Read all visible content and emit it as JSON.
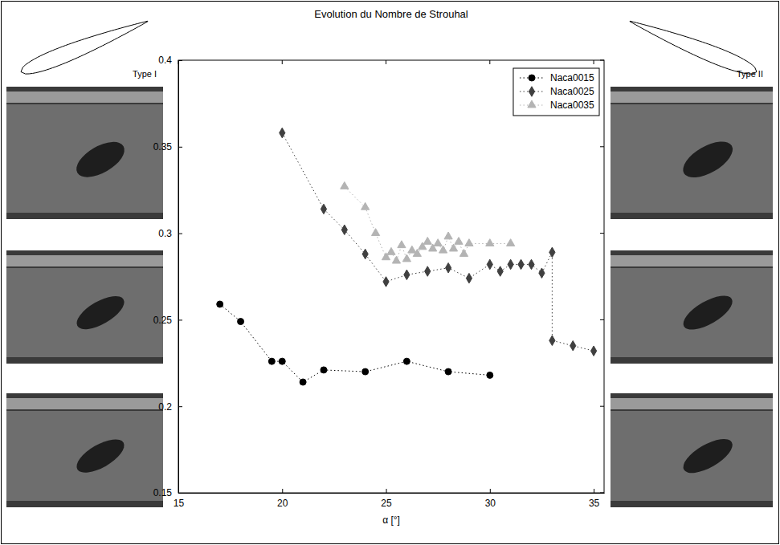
{
  "chart_data": {
    "type": "line",
    "title": "Evolution du Nombre de Strouhal",
    "x_label": "α [°]",
    "xlim": [
      15,
      35.5
    ],
    "xticks": [
      15,
      20,
      25,
      30,
      35
    ],
    "ylim": [
      0.15,
      0.4
    ],
    "yticks": [
      0.15,
      0.2,
      0.25,
      0.3,
      0.35,
      0.4
    ],
    "grid": false,
    "legend": "upper right",
    "annotations": [
      {
        "text": "Type I"
      },
      {
        "text": "Type II"
      }
    ],
    "series": [
      {
        "name": "Naca0015",
        "color": "#000000",
        "marker": "circle",
        "line_style": "dotted",
        "x": [
          17,
          18,
          19.5,
          20,
          21,
          22,
          24,
          26,
          28,
          30
        ],
        "values": [
          0.259,
          0.249,
          0.226,
          0.226,
          0.214,
          0.221,
          0.22,
          0.226,
          0.22,
          0.218
        ]
      },
      {
        "name": "Naca0025",
        "color": "#404040",
        "marker": "diamond",
        "line_style": "dotted",
        "x": [
          20,
          22,
          23,
          24,
          25,
          26,
          27,
          28,
          29,
          30,
          30.5,
          31,
          31.5,
          32,
          32.5,
          33,
          33,
          34,
          35
        ],
        "values": [
          0.358,
          0.314,
          0.302,
          0.288,
          0.272,
          0.276,
          0.278,
          0.28,
          0.274,
          0.282,
          0.278,
          0.282,
          0.282,
          0.282,
          0.277,
          0.289,
          0.238,
          0.235,
          0.232
        ]
      },
      {
        "name": "Naca0035",
        "color": "#b4b4b4",
        "marker": "triangle",
        "line_style": "dotted",
        "x": [
          23,
          24,
          24.5,
          25,
          25.25,
          25.5,
          25.75,
          26,
          26.25,
          26.5,
          26.75,
          27,
          27.25,
          27.5,
          27.75,
          28,
          28.25,
          28.5,
          28.75,
          29,
          30,
          31
        ],
        "values": [
          0.327,
          0.315,
          0.3,
          0.286,
          0.289,
          0.284,
          0.293,
          0.285,
          0.29,
          0.288,
          0.292,
          0.295,
          0.291,
          0.294,
          0.29,
          0.298,
          0.291,
          0.295,
          0.288,
          0.294,
          0.294,
          0.294
        ]
      }
    ]
  }
}
